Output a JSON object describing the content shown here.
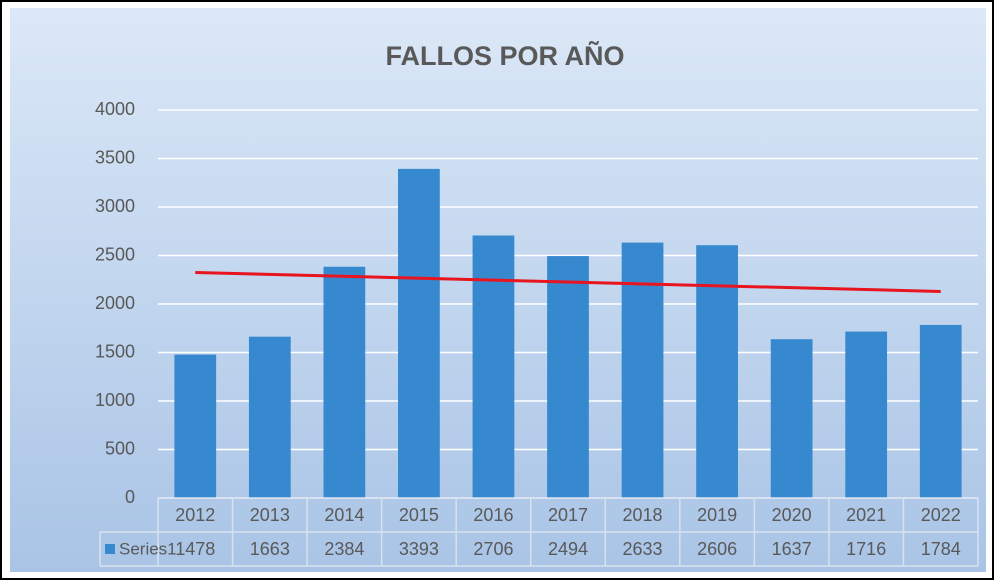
{
  "chart_data": {
    "type": "bar",
    "title": "FALLOS POR AÑO",
    "categories": [
      "2012",
      "2013",
      "2014",
      "2015",
      "2016",
      "2017",
      "2018",
      "2019",
      "2020",
      "2021",
      "2022"
    ],
    "series": [
      {
        "name": "Series1",
        "color": "#3688cf",
        "values": [
          1478,
          1663,
          2384,
          3393,
          2706,
          2494,
          2633,
          2606,
          1637,
          1716,
          1784
        ]
      }
    ],
    "ylim": [
      0,
      4000
    ],
    "yticks": [
      0,
      500,
      1000,
      1500,
      2000,
      2500,
      3000,
      3500,
      4000
    ],
    "grid": true,
    "data_table": true,
    "trendline": {
      "type": "linear",
      "color": "#e8141e"
    }
  }
}
